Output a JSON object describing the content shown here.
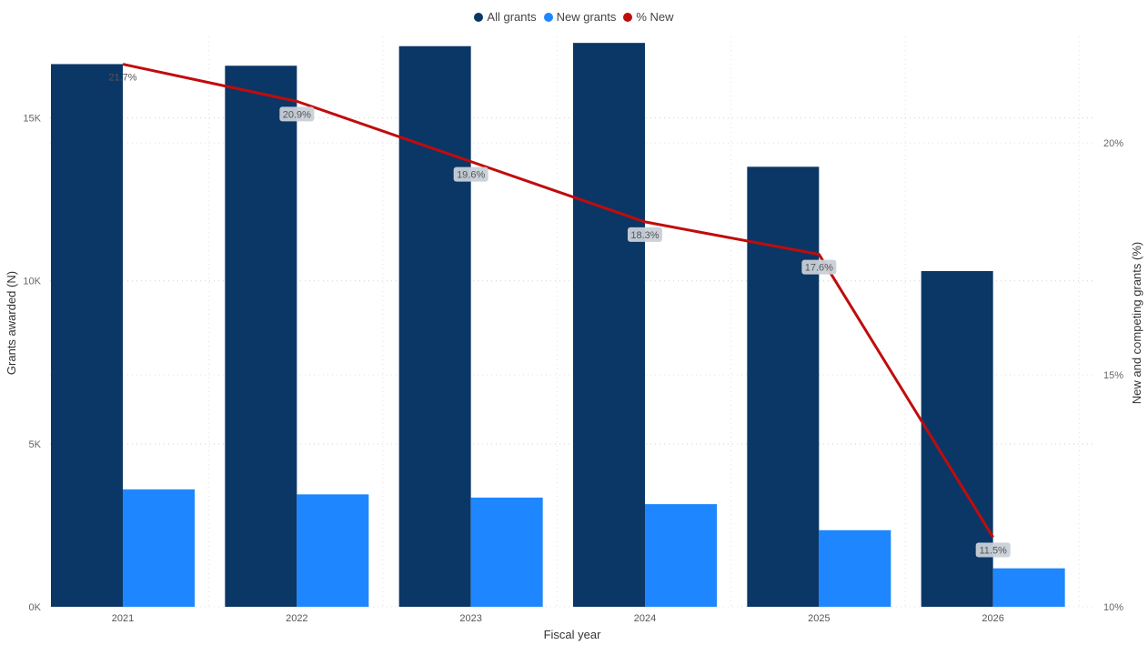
{
  "legend": {
    "items": [
      {
        "label": "All grants",
        "color": "#0B3766"
      },
      {
        "label": "New grants",
        "color": "#1E87FF"
      },
      {
        "label": "% New",
        "color": "#C00C0C"
      }
    ]
  },
  "chart_data": {
    "type": "bar",
    "categories": [
      "2021",
      "2022",
      "2023",
      "2024",
      "2025",
      "2026"
    ],
    "series": [
      {
        "name": "All grants",
        "type": "bar",
        "axis": "left",
        "color": "#0B3766",
        "values": [
          16650,
          16600,
          17200,
          17300,
          13500,
          10300
        ]
      },
      {
        "name": "New grants",
        "type": "bar",
        "axis": "left",
        "color": "#1E87FF",
        "values": [
          3600,
          3450,
          3350,
          3150,
          2350,
          1180
        ]
      },
      {
        "name": "% New",
        "type": "line",
        "axis": "right",
        "color": "#C00C0C",
        "values": [
          21.7,
          20.9,
          19.6,
          18.3,
          17.6,
          11.5
        ],
        "labels": [
          "21.7%",
          "20.9%",
          "19.6%",
          "18.3%",
          "17.6%",
          "11.5%"
        ]
      }
    ],
    "xlabel": "Fiscal year",
    "ylabel": "Grants awarded (N)",
    "y2label": "New and competing grants (%)",
    "ylim": [
      0,
      17500
    ],
    "y2lim": [
      10,
      22.3
    ],
    "yticks": [
      0,
      5000,
      10000,
      15000
    ],
    "ytick_labels": [
      "0K",
      "5K",
      "10K",
      "15K"
    ],
    "y2ticks": [
      10,
      15,
      20
    ],
    "y2tick_labels": [
      "10%",
      "15%",
      "20%"
    ],
    "grid": true,
    "legend_position": "top-center"
  }
}
